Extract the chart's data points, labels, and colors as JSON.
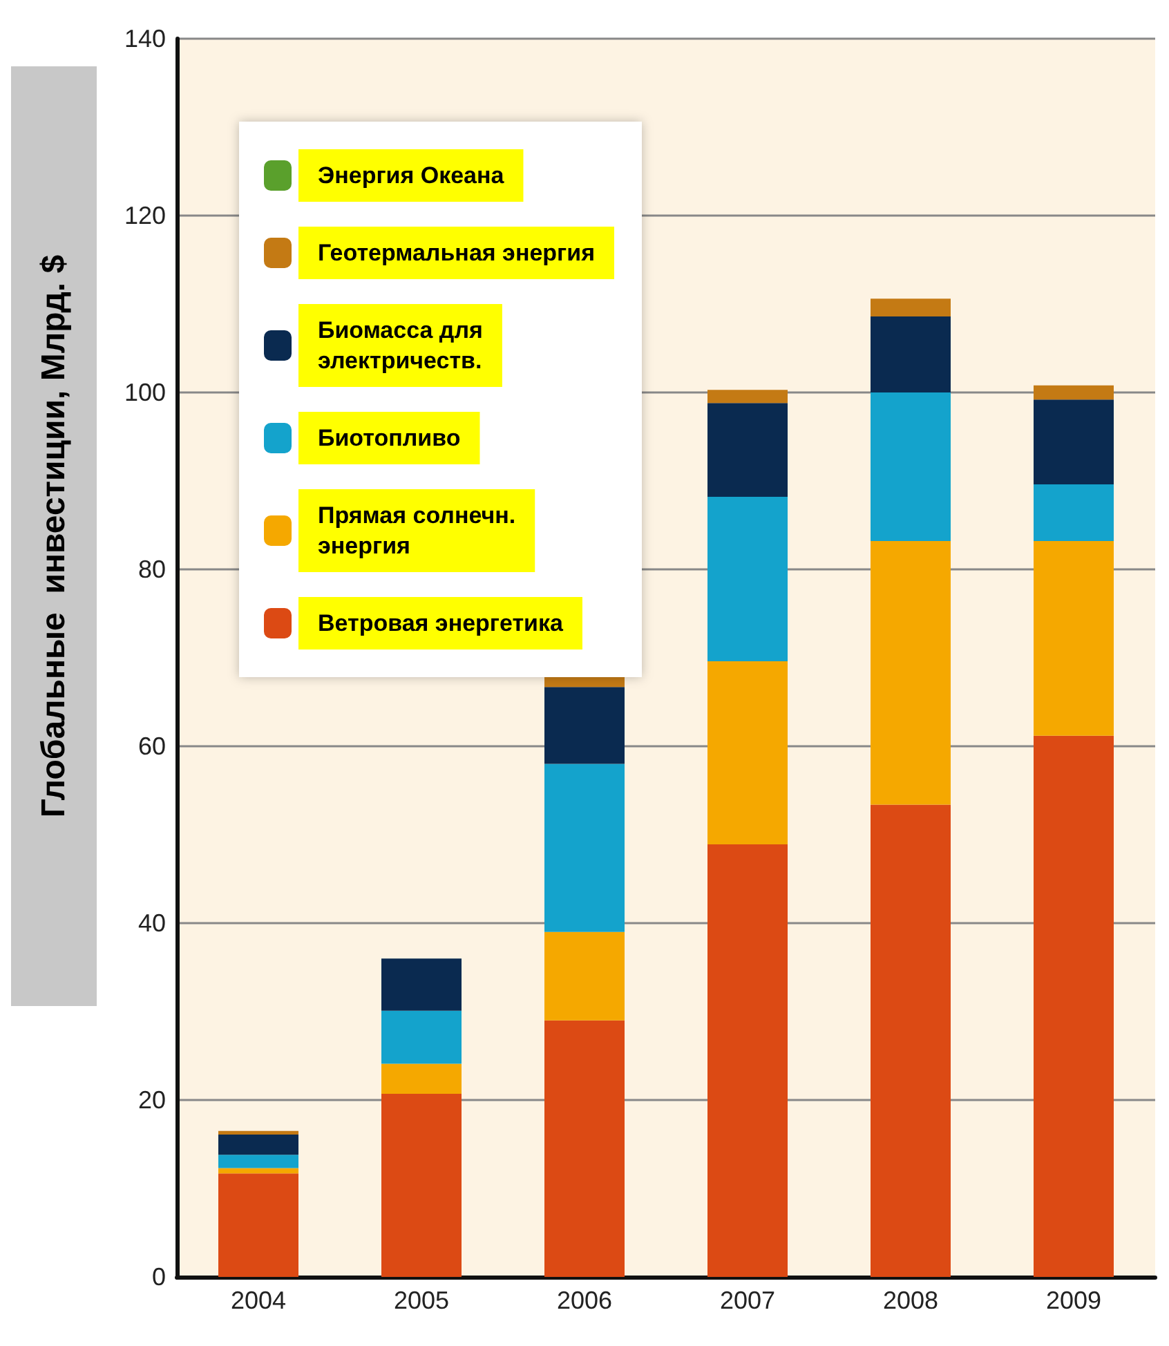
{
  "chart_data": {
    "type": "bar",
    "stacked": true,
    "ylabel": "Глобальные  инвестиции, Млрд. $",
    "categories": [
      "2004",
      "2005",
      "2006",
      "2007",
      "2008",
      "2009"
    ],
    "series": [
      {
        "name": "Ветровая энергетика",
        "color": "#dc4a14",
        "values": [
          11.7,
          20.7,
          29.0,
          48.9,
          53.4,
          61.2
        ]
      },
      {
        "name": "Прямая солнечн. энергия",
        "color": "#f5a800",
        "values": [
          0.6,
          3.4,
          10.0,
          20.7,
          29.8,
          22.0
        ]
      },
      {
        "name": "Биотопливо",
        "color": "#14a3cc",
        "values": [
          1.5,
          6.0,
          19.0,
          18.6,
          16.8,
          6.4
        ]
      },
      {
        "name": "Биомасса для электричеств.",
        "color": "#0a2a50",
        "values": [
          2.3,
          5.9,
          8.7,
          10.6,
          8.6,
          9.6
        ]
      },
      {
        "name": "Геотермальная энергия",
        "color": "#c47a14",
        "values": [
          0.4,
          0,
          1.3,
          1.5,
          2.0,
          1.6
        ]
      },
      {
        "name": "Энергия Океана",
        "color": "#5aa02c",
        "values": [
          0,
          0,
          0,
          0,
          0,
          0
        ]
      }
    ],
    "ylim": [
      0,
      140
    ],
    "yticks": [
      0,
      20,
      40,
      60,
      80,
      100,
      120,
      140
    ],
    "grid": "y",
    "legend": "top left"
  }
}
